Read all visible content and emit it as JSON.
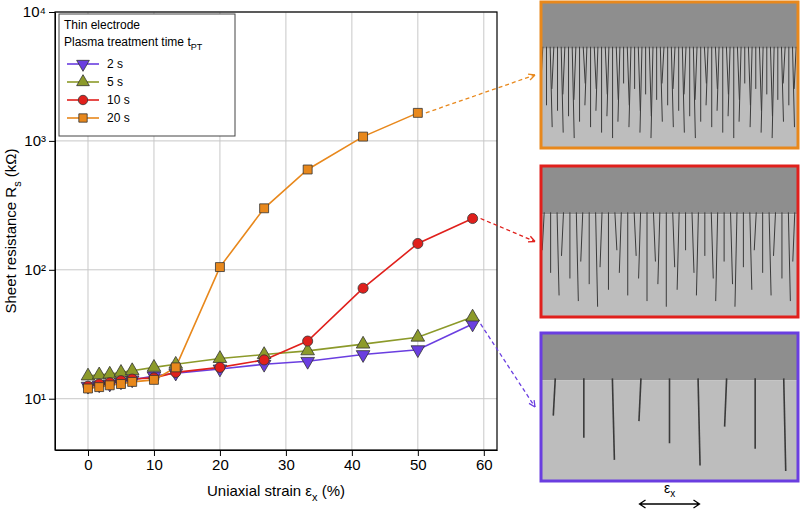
{
  "chart_data": {
    "type": "line",
    "x_label": [
      {
        "text": "Uniaxial strain ε"
      },
      {
        "sub": "x"
      },
      {
        "text": " (%)"
      }
    ],
    "y_label": [
      {
        "text": "Sheet resistance R"
      },
      {
        "sub": "s"
      },
      {
        "text": " (kΩ)"
      }
    ],
    "legend_title": [
      [
        {
          "text": "Thin electrode"
        }
      ],
      [
        {
          "text": "Plasma treatment time t"
        },
        {
          "sub": "PT"
        }
      ]
    ],
    "annotations": [
      [
        {
          "text": "ε"
        },
        {
          "sub": "x"
        }
      ]
    ],
    "series": [
      {
        "name": "2 s",
        "color": "#6a3ee0",
        "marker": "triangle-down",
        "x": [
          0,
          1.7,
          3.3,
          5,
          6.7,
          10,
          13.3,
          20,
          26.7,
          33.3,
          41.7,
          50,
          58.3
        ],
        "values": [
          12.5,
          12.8,
          13,
          13.5,
          14,
          15,
          15.8,
          17,
          18.5,
          19.5,
          22,
          24,
          38
        ]
      },
      {
        "name": "5 s",
        "color": "#8c9a2a",
        "marker": "triangle-up",
        "x": [
          0,
          1.7,
          3.3,
          5,
          6.7,
          10,
          13.3,
          20,
          26.7,
          33.3,
          41.7,
          50,
          58.3
        ],
        "values": [
          15,
          15.3,
          15.5,
          16,
          16.5,
          17.5,
          18.5,
          20.5,
          22,
          23.5,
          26.5,
          30,
          43
        ]
      },
      {
        "name": "10 s",
        "color": "#e0201c",
        "marker": "circle",
        "x": [
          0,
          1.7,
          3.3,
          5,
          6.7,
          10,
          13.3,
          20,
          26.7,
          33.3,
          41.7,
          50,
          58.3
        ],
        "values": [
          12.5,
          13,
          13.3,
          13.8,
          14.2,
          14.5,
          16,
          17.5,
          20,
          28,
          72,
          160,
          250
        ]
      },
      {
        "name": "20 s",
        "color": "#e8881c",
        "marker": "square",
        "x": [
          0,
          1.7,
          3.3,
          5,
          6.7,
          10,
          13.3,
          20,
          26.7,
          33.3,
          41.7,
          50
        ],
        "values": [
          12,
          12.3,
          12.7,
          13,
          13.5,
          14,
          17.5,
          105,
          300,
          600,
          1080,
          1650
        ]
      }
    ],
    "xlim": [
      -5,
      62
    ],
    "xticks": [
      0,
      10,
      20,
      30,
      40,
      50,
      60
    ],
    "ylim": [
      4,
      10000
    ],
    "yticks": [
      {
        "value": 10,
        "label": "10¹"
      },
      {
        "value": 100,
        "label": "10²"
      },
      {
        "value": 1000,
        "label": "10³"
      },
      {
        "value": 10000,
        "label": "10⁴"
      }
    ],
    "log": "y",
    "grid": true,
    "legend": "upper left"
  }
}
